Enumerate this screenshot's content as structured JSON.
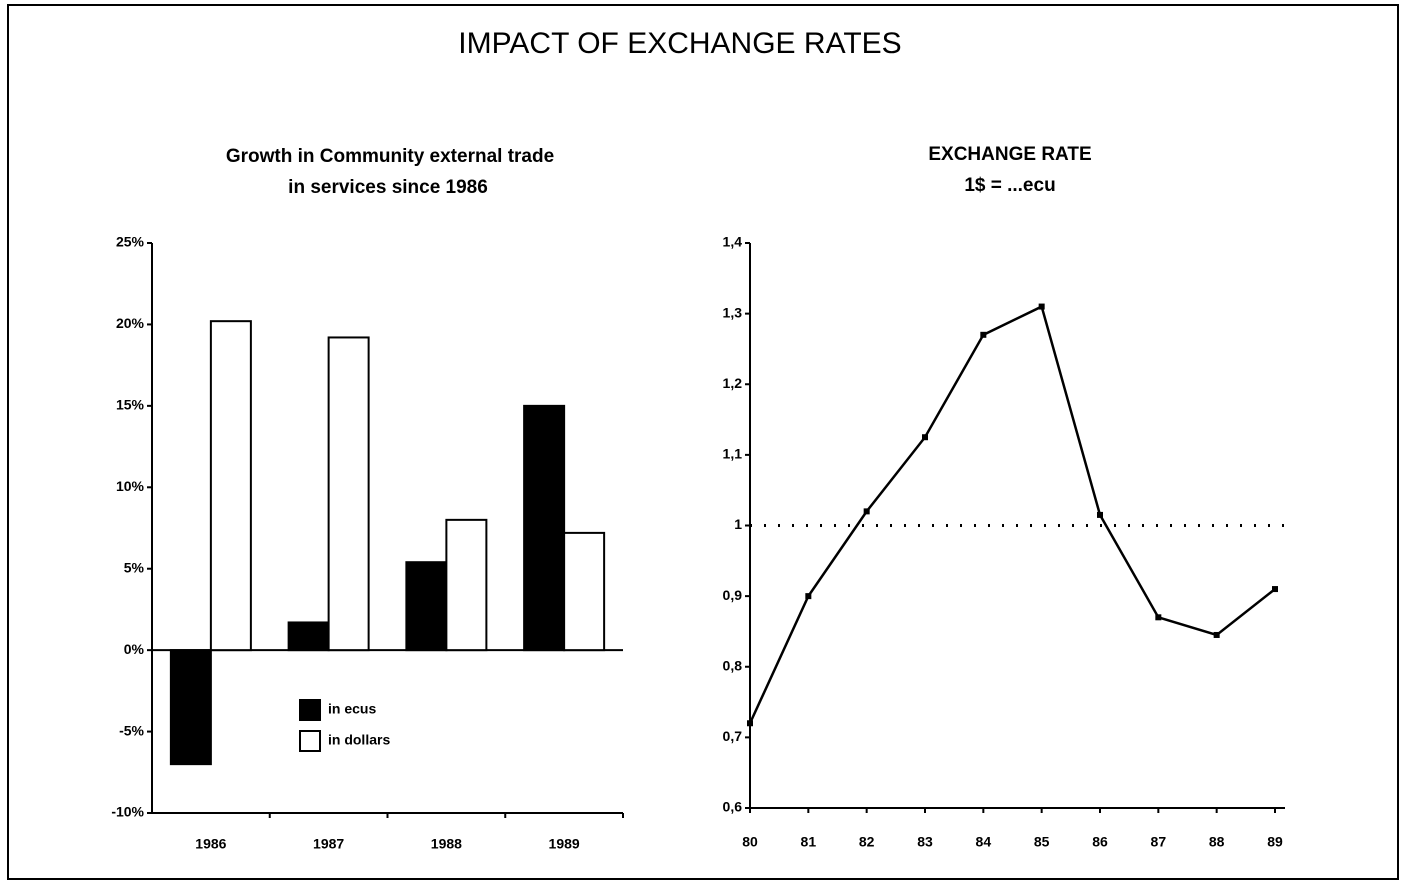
{
  "title": "IMPACT OF EXCHANGE RATES",
  "chart_data": [
    {
      "type": "bar",
      "title": [
        "Growth in Community external trade",
        "in services since 1986"
      ],
      "categories": [
        "1986",
        "1987",
        "1988",
        "1989"
      ],
      "series": [
        {
          "name": "in ecus",
          "color": "#000000",
          "values": [
            -7,
            1.7,
            5.4,
            15
          ]
        },
        {
          "name": "in dollars",
          "color": "#ffffff",
          "values": [
            20.2,
            19.2,
            8,
            7.2
          ]
        }
      ],
      "ylim": [
        -10,
        25
      ],
      "yticks": [
        {
          "value": -10,
          "label": "-10%"
        },
        {
          "value": -5,
          "label": "-5%"
        },
        {
          "value": 0,
          "label": "0%"
        },
        {
          "value": 5,
          "label": "5%"
        },
        {
          "value": 10,
          "label": "10%"
        },
        {
          "value": 15,
          "label": "15%"
        },
        {
          "value": 20,
          "label": "20%"
        },
        {
          "value": 25,
          "label": "25%"
        }
      ],
      "legend": "lower-center"
    },
    {
      "type": "line",
      "title": "EXCHANGE RATE",
      "subtitle": "1$ = ...ecu",
      "categories": [
        "80",
        "81",
        "82",
        "83",
        "84",
        "85",
        "86",
        "87",
        "88",
        "89"
      ],
      "series": [
        {
          "color": "#000000",
          "values": [
            0.72,
            0.9,
            1.02,
            1.125,
            1.27,
            1.31,
            1.015,
            0.87,
            0.845,
            0.91
          ]
        }
      ],
      "ylim": [
        0.6,
        1.4
      ],
      "yticks": [
        {
          "value": 0.6,
          "label": "0,6"
        },
        {
          "value": 0.7,
          "label": "0,7"
        },
        {
          "value": 0.8,
          "label": "0,8"
        },
        {
          "value": 0.9,
          "label": "0,9"
        },
        1,
        {
          "value": 1.1,
          "label": "1,1"
        },
        {
          "value": 1.2,
          "label": "1,2"
        },
        {
          "value": 1.3,
          "label": "1,3"
        },
        {
          "value": 1.4,
          "label": "1,4"
        }
      ],
      "reference_line": 1
    }
  ]
}
